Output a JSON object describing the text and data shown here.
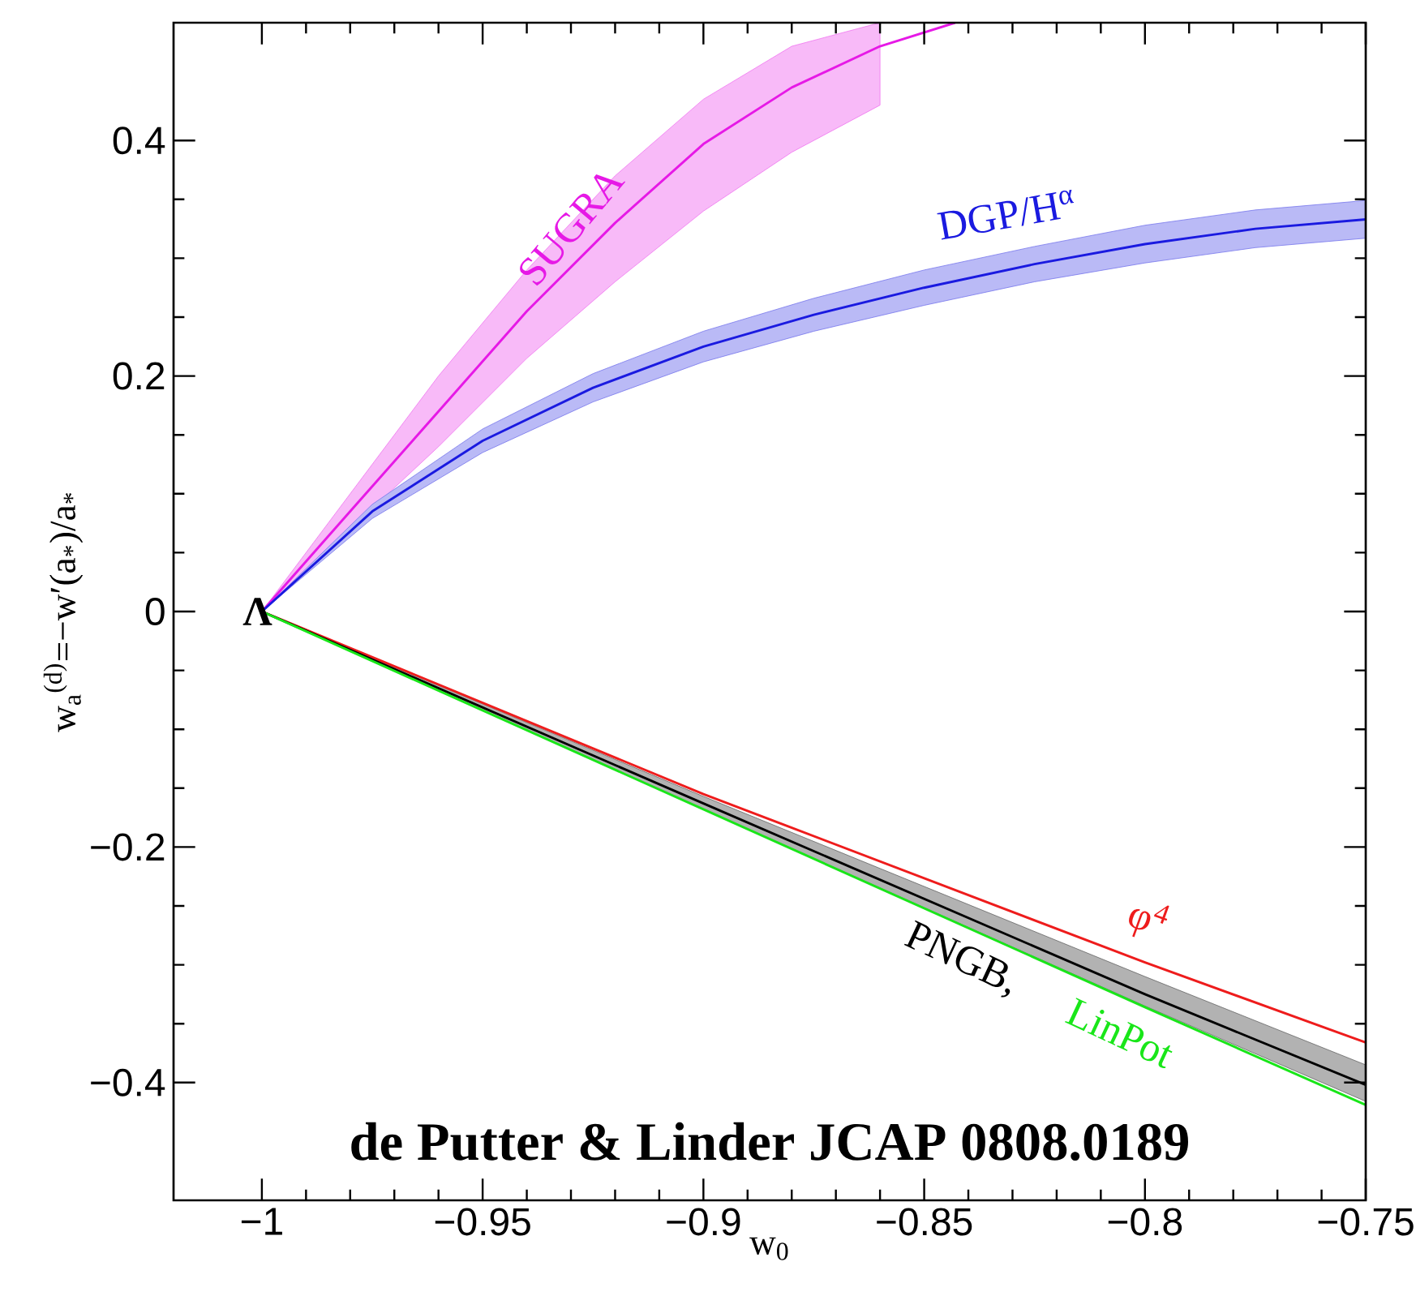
{
  "chart_data": {
    "type": "line",
    "xlabel": "w$_{0}$",
    "ylabel": "w$_{a}$$^{(d)}$=−w′(a$_{*}$)/a$_{*}$",
    "xlim": [
      -1.02,
      -0.75
    ],
    "ylim": [
      -0.5,
      0.5
    ],
    "xticks": [
      {
        "value": -1,
        "label": "−1"
      },
      {
        "value": -0.95,
        "label": "−0.95"
      },
      {
        "value": -0.9,
        "label": "−0.9"
      },
      {
        "value": -0.85,
        "label": "−0.85"
      },
      {
        "value": -0.8,
        "label": "−0.8"
      },
      {
        "value": -0.75,
        "label": "−0.75"
      }
    ],
    "yticks": [
      {
        "value": -0.4,
        "label": "−0.4"
      },
      {
        "value": -0.2,
        "label": "−0.2"
      },
      0,
      0.2,
      0.4
    ],
    "series": [
      {
        "name": "SUGRA",
        "color": "#e619e6",
        "x": [
          -1,
          -0.98,
          -0.96,
          -0.94,
          -0.92,
          -0.9,
          -0.88,
          -0.86,
          -0.843
        ],
        "values": [
          0,
          0.085,
          0.17,
          0.255,
          0.33,
          0.397,
          0.445,
          0.48,
          0.5
        ],
        "upper": [
          0,
          0.1,
          0.2,
          0.29,
          0.37,
          0.435,
          0.48,
          0.5,
          null
        ],
        "lower": [
          0,
          0.07,
          0.14,
          0.215,
          0.28,
          0.34,
          0.39,
          0.43,
          null
        ]
      },
      {
        "name": "DGP/H$^{α}$",
        "color": "#1a1ae0",
        "x": [
          -1,
          -0.975,
          -0.95,
          -0.925,
          -0.9,
          -0.875,
          -0.85,
          -0.825,
          -0.8,
          -0.775,
          -0.75
        ],
        "values": [
          0,
          0.085,
          0.145,
          0.19,
          0.225,
          0.252,
          0.275,
          0.295,
          0.312,
          0.325,
          0.333
        ],
        "upper": [
          0,
          0.091,
          0.155,
          0.202,
          0.238,
          0.266,
          0.29,
          0.31,
          0.328,
          0.341,
          0.349
        ],
        "lower": [
          0,
          0.079,
          0.135,
          0.178,
          0.212,
          0.238,
          0.26,
          0.28,
          0.296,
          0.309,
          0.317
        ]
      },
      {
        "name": "φ$^{4}$",
        "color": "#ee1c1c",
        "x": [
          -1,
          -0.9,
          -0.8,
          -0.75
        ],
        "values": [
          0,
          -0.155,
          -0.298,
          -0.366
        ]
      },
      {
        "name": "PNGB,",
        "color": "#000000",
        "x": [
          -1,
          -0.9,
          -0.8,
          -0.75
        ],
        "values": [
          0,
          -0.163,
          -0.325,
          -0.402
        ],
        "upper": [
          0,
          -0.157,
          -0.31,
          -0.385
        ],
        "lower": [
          0,
          -0.168,
          -0.335,
          -0.416
        ]
      },
      {
        "name": "LinPot",
        "color": "#19e619",
        "x": [
          -1,
          -0.9,
          -0.8,
          -0.75
        ],
        "values": [
          0,
          -0.168,
          -0.336,
          -0.419
        ]
      }
    ],
    "annotations": [
      {
        "text": "Λ",
        "x": -1,
        "y": 0
      },
      "de Putter & Linder JCAP 0808.0189"
    ]
  }
}
